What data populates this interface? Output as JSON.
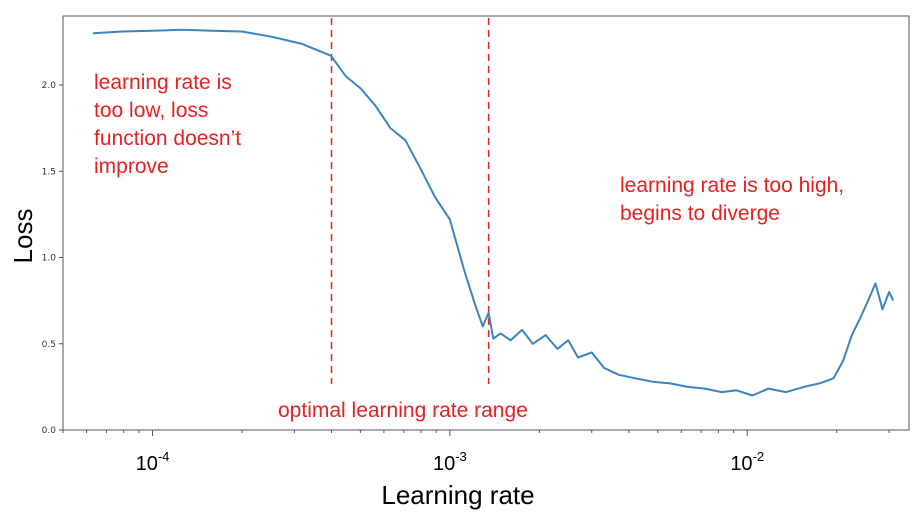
{
  "chart_data": {
    "type": "line",
    "xlabel": "Learning rate",
    "ylabel": "Loss",
    "xscale": "log",
    "xlim": [
      5e-05,
      0.035
    ],
    "ylim": [
      0,
      2.4
    ],
    "x_ticks": [
      {
        "value": 0.0001,
        "base": "10",
        "exp": "-4"
      },
      {
        "value": 0.001,
        "base": "10",
        "exp": "-3"
      },
      {
        "value": 0.01,
        "base": "10",
        "exp": "-2"
      }
    ],
    "y_ticks": [
      {
        "value": 0.0,
        "label": "0.0"
      },
      {
        "value": 0.5,
        "label": "0.5"
      },
      {
        "value": 1.0,
        "label": "1.0"
      },
      {
        "value": 1.5,
        "label": "1.5"
      },
      {
        "value": 2.0,
        "label": "2.0"
      }
    ],
    "grid": false,
    "series": [
      {
        "color": "#3a84c0",
        "x": [
          6.31e-05,
          7.9e-05,
          0.0001,
          0.000126,
          0.000158,
          0.0002,
          0.000251,
          0.000316,
          0.000398,
          0.000447,
          0.000501,
          0.000562,
          0.000631,
          0.000708,
          0.000794,
          0.000891,
          0.001,
          0.00112,
          0.00122,
          0.00129,
          0.00135,
          0.0014,
          0.00148,
          0.0016,
          0.00175,
          0.0019,
          0.0021,
          0.0023,
          0.0025,
          0.0027,
          0.003,
          0.0033,
          0.0037,
          0.0042,
          0.0048,
          0.0055,
          0.0063,
          0.0072,
          0.0082,
          0.0092,
          0.0104,
          0.0118,
          0.0135,
          0.0155,
          0.0175,
          0.0195,
          0.021,
          0.0225,
          0.024,
          0.0255,
          0.027,
          0.0285,
          0.03,
          0.031
        ],
        "y": [
          2.3,
          2.31,
          2.315,
          2.32,
          2.315,
          2.31,
          2.28,
          2.24,
          2.17,
          2.05,
          1.98,
          1.88,
          1.75,
          1.68,
          1.52,
          1.35,
          1.22,
          0.92,
          0.72,
          0.6,
          0.68,
          0.53,
          0.56,
          0.52,
          0.58,
          0.5,
          0.55,
          0.47,
          0.52,
          0.42,
          0.45,
          0.36,
          0.32,
          0.3,
          0.28,
          0.27,
          0.25,
          0.24,
          0.22,
          0.23,
          0.2,
          0.24,
          0.22,
          0.25,
          0.27,
          0.3,
          0.4,
          0.55,
          0.65,
          0.75,
          0.85,
          0.7,
          0.8,
          0.75
        ]
      }
    ],
    "vlines": [
      {
        "x": 0.0004,
        "color": "#e8201f",
        "style": "dashed"
      },
      {
        "x": 0.00135,
        "color": "#e8201f",
        "style": "dashed"
      }
    ],
    "annotations": [
      {
        "lines": [
          "learning rate is",
          "too low, loss",
          "function doesn’t",
          "improve"
        ]
      },
      {
        "lines": [
          "learning rate is too high,",
          "begins to diverge"
        ]
      },
      {
        "lines": [
          "optimal learning rate range"
        ]
      }
    ]
  }
}
